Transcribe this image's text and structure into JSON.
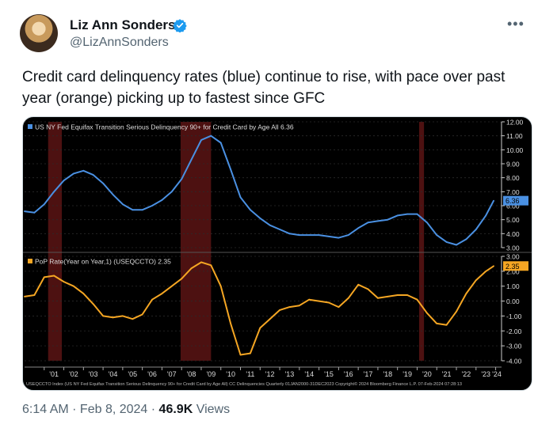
{
  "author": {
    "name": "Liz Ann Sonders",
    "handle": "@LizAnnSonders"
  },
  "tweet_text": "Credit card delinquency rates (blue) continue to rise, with pace over past year (orange) picking up to fastest since GFC",
  "footer": {
    "time": "6:14 AM",
    "sep1": " · ",
    "date": "Feb 8, 2024",
    "sep2": " · ",
    "views": "46.9K",
    "views_label": " Views"
  },
  "icons": {
    "avatar": "avatar-photo",
    "verified": "verified-badge-icon",
    "more": "more-options-icon"
  },
  "colors": {
    "blue_series": "#4a90e2",
    "orange_series": "#f5a623",
    "recession": "#5a1414",
    "background": "#000000"
  },
  "chart_data": [
    {
      "type": "line",
      "legend": "US NY Fed Equifax Transition Serious Delinquency 90+ for Credit Card by Age All 6.36",
      "last_value_label": "6.36",
      "ylim": [
        3.0,
        12.0
      ],
      "yticks": [
        "12.00",
        "11.00",
        "10.00",
        "9.00",
        "8.00",
        "7.00",
        "6.00",
        "5.00",
        "4.00",
        "3.00"
      ],
      "x": [
        2000.0,
        2000.5,
        2001.0,
        2001.5,
        2002.0,
        2002.5,
        2003.0,
        2003.5,
        2004.0,
        2004.5,
        2005.0,
        2005.5,
        2006.0,
        2006.5,
        2007.0,
        2007.5,
        2008.0,
        2008.5,
        2009.0,
        2009.5,
        2010.0,
        2010.5,
        2011.0,
        2011.5,
        2012.0,
        2012.5,
        2013.0,
        2013.5,
        2014.0,
        2014.5,
        2015.0,
        2015.5,
        2016.0,
        2016.5,
        2017.0,
        2017.5,
        2018.0,
        2018.5,
        2019.0,
        2019.5,
        2020.0,
        2020.5,
        2021.0,
        2021.5,
        2022.0,
        2022.5,
        2023.0,
        2023.5,
        2023.9
      ],
      "y": [
        5.6,
        5.5,
        6.1,
        7.0,
        7.8,
        8.3,
        8.5,
        8.2,
        7.6,
        6.8,
        6.1,
        5.7,
        5.7,
        6.0,
        6.4,
        7.0,
        7.9,
        9.3,
        10.7,
        11.0,
        10.5,
        8.6,
        6.6,
        5.7,
        5.1,
        4.6,
        4.3,
        4.0,
        3.9,
        3.9,
        3.9,
        3.8,
        3.7,
        3.9,
        4.4,
        4.8,
        4.9,
        5.0,
        5.3,
        5.4,
        5.4,
        4.8,
        3.9,
        3.4,
        3.2,
        3.6,
        4.3,
        5.3,
        6.36
      ]
    },
    {
      "type": "line",
      "legend": "PoP Rate(Year on Year,1) (USEQCCTO) 2.35",
      "last_value_label": "2.35",
      "ylim": [
        -4.0,
        3.0
      ],
      "yticks": [
        "3.00",
        "2.00",
        "1.00",
        "0.00",
        "-1.00",
        "-2.00",
        "-3.00",
        "-4.00"
      ],
      "x": [
        2000.0,
        2000.5,
        2001.0,
        2001.5,
        2002.0,
        2002.5,
        2003.0,
        2003.5,
        2004.0,
        2004.5,
        2005.0,
        2005.5,
        2006.0,
        2006.5,
        2007.0,
        2007.5,
        2008.0,
        2008.5,
        2009.0,
        2009.5,
        2010.0,
        2010.5,
        2011.0,
        2011.5,
        2012.0,
        2012.5,
        2013.0,
        2013.5,
        2014.0,
        2014.5,
        2015.0,
        2015.5,
        2016.0,
        2016.5,
        2017.0,
        2017.5,
        2018.0,
        2018.5,
        2019.0,
        2019.5,
        2020.0,
        2020.5,
        2021.0,
        2021.5,
        2022.0,
        2022.5,
        2023.0,
        2023.5,
        2023.9
      ],
      "y": [
        0.3,
        0.4,
        1.6,
        1.7,
        1.3,
        1.0,
        0.5,
        -0.2,
        -1.0,
        -1.1,
        -1.0,
        -1.2,
        -0.9,
        0.1,
        0.5,
        1.0,
        1.5,
        2.2,
        2.6,
        2.4,
        1.0,
        -1.5,
        -3.6,
        -3.5,
        -1.8,
        -1.2,
        -0.6,
        -0.4,
        -0.3,
        0.1,
        0.0,
        -0.1,
        -0.4,
        0.2,
        1.1,
        0.8,
        0.2,
        0.3,
        0.4,
        0.4,
        0.1,
        -0.8,
        -1.5,
        -1.6,
        -0.7,
        0.5,
        1.4,
        2.0,
        2.35
      ]
    }
  ],
  "recessions": [
    [
      2001.2,
      2001.9
    ],
    [
      2007.95,
      2009.5
    ],
    [
      2020.1,
      2020.35
    ]
  ],
  "x_axis": {
    "labels": [
      "'01",
      "'02",
      "'03",
      "'04",
      "'05",
      "'06",
      "'07",
      "'08",
      "'09",
      "'10",
      "'11",
      "'12",
      "'13",
      "'14",
      "'15",
      "'16",
      "'17",
      "'18",
      "'19",
      "'20",
      "'21",
      "'22",
      "'23",
      "'24"
    ],
    "years": [
      2001,
      2002,
      2003,
      2004,
      2005,
      2006,
      2007,
      2008,
      2009,
      2010,
      2011,
      2012,
      2013,
      2014,
      2015,
      2016,
      2017,
      2018,
      2019,
      2020,
      2021,
      2022,
      2023,
      2024
    ]
  },
  "source_line": "USEQCCTO Index (US NY Fed Equifax Transition Serious Delinquency 90+ for Credit Card by Age All) CC Delinquencies Quarterly 01JAN2000-31DEC2023 Copyright© 2024 Bloomberg Finance L.P. 07-Feb-2024 07:28:13"
}
